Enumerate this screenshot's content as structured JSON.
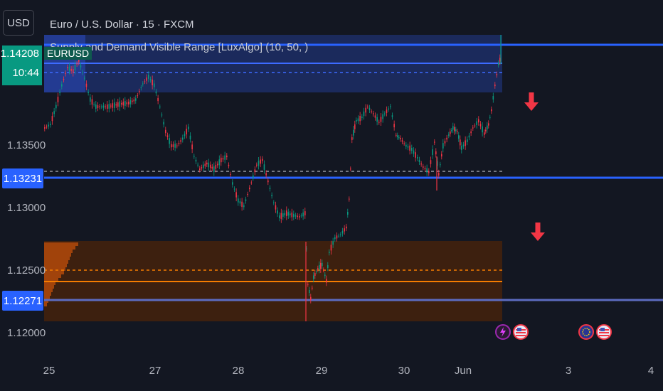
{
  "header": {
    "currency": "USD",
    "symbol_title": "Euro / U.S. Dollar · 15 · FXCM",
    "indicator": "Supply and Demand Visible Range [LuxAlgo] (10, 50, )"
  },
  "last_price": {
    "value": "1.14208",
    "countdown": "10:44",
    "symbol": "EURUSD"
  },
  "price_axis": [
    "1.13500",
    "1.13000",
    "1.12500",
    "1.12000"
  ],
  "level_labels": [
    "1.13231",
    "1.12271"
  ],
  "time_axis": [
    "25",
    "27",
    "28",
    "29",
    "30",
    "Jun",
    "3",
    "4"
  ],
  "events": [
    {
      "icon": "lightning-icon"
    },
    {
      "icon": "us-flag-icon"
    },
    {
      "icon": "eu-flag-icon"
    },
    {
      "icon": "us-flag-icon"
    }
  ],
  "colors": {
    "background": "#131722",
    "up": "#089981",
    "down": "#f23645",
    "supply_zone": "#1a2f6e",
    "demand_zone": "#4a2410",
    "level_line": "#2962ff",
    "arrow": "#f23645"
  }
}
